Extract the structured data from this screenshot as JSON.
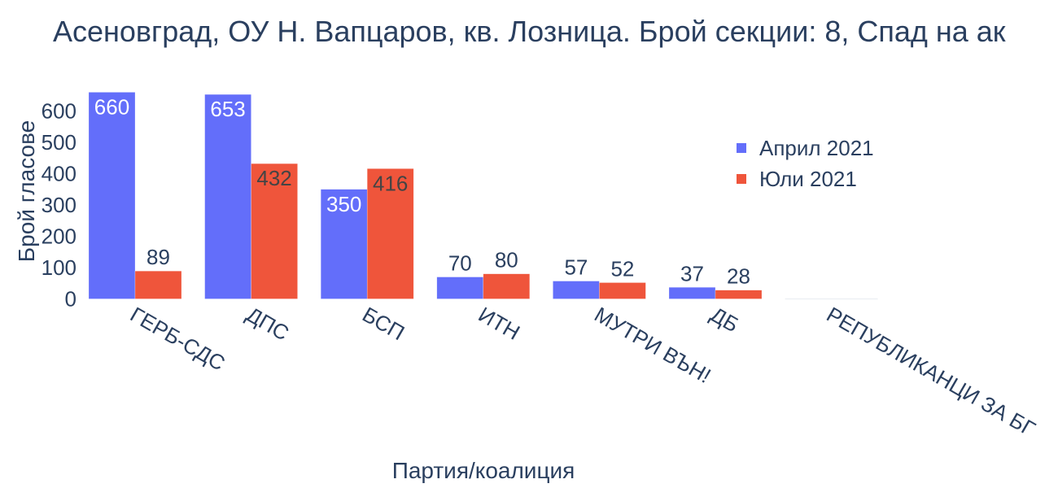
{
  "title": "Асеновград, ОУ Н. Вапцаров, кв. Лозница. Брой секции: 8,  Спад на ак",
  "chart_data": {
    "type": "bar",
    "title": "Асеновград, ОУ Н. Вапцаров, кв. Лозница. Брой секции: 8,  Спад на ак",
    "xlabel": "Партия/коалиция",
    "ylabel": "Брой гласове",
    "categories": [
      "ГЕРБ-СДС",
      "ДПС",
      "БСП",
      "ИТН",
      "МУТРИ ВЪН!",
      "ДБ",
      "РЕПУБЛИКАНЦИ ЗА БГ"
    ],
    "series": [
      {
        "name": "Април 2021",
        "color": "#636efa",
        "values": [
          660,
          653,
          350,
          70,
          57,
          37,
          0
        ]
      },
      {
        "name": "Юли 2021",
        "color": "#ef553b",
        "values": [
          89,
          432,
          416,
          80,
          52,
          28,
          0
        ]
      }
    ],
    "yticks": [
      0,
      100,
      200,
      300,
      400,
      500,
      600
    ],
    "ylim": [
      0,
      693
    ],
    "grid": false,
    "legend_position": "top-right inside"
  },
  "legend": {
    "items": [
      {
        "label": "Април 2021",
        "color": "#636efa"
      },
      {
        "label": "Юли 2021",
        "color": "#ef553b"
      }
    ]
  }
}
